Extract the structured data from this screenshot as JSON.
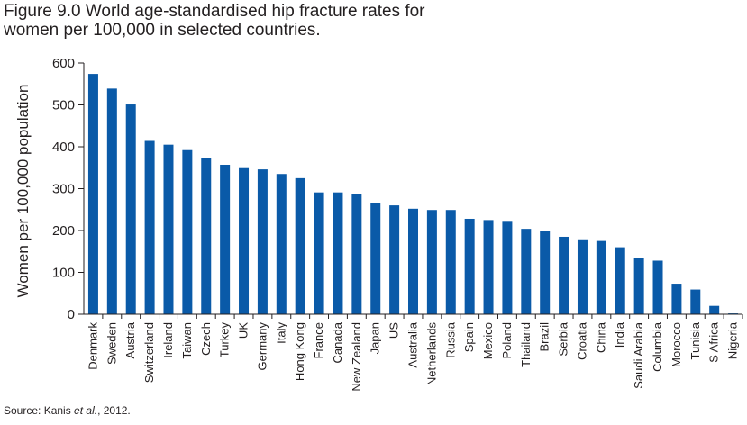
{
  "chart_data": {
    "type": "bar",
    "title_line1": "Figure 9.0 World age-standardised hip fracture rates for",
    "title_line2": "women per 100,000 in selected countries.",
    "xlabel": "",
    "ylabel": "Women per 100,000 population",
    "ylim": [
      0,
      600
    ],
    "yticks": [
      0,
      100,
      200,
      300,
      400,
      500,
      600
    ],
    "categories": [
      "Denmark",
      "Sweden",
      "Austria",
      "Switzerland",
      "Ireland",
      "Taiwan",
      "Czech",
      "Turkey",
      "UK",
      "Germany",
      "Italy",
      "Hong Kong",
      "France",
      "Canada",
      "New Zealand",
      "Japan",
      "US",
      "Australia",
      "Netherlands",
      "Russia",
      "Spain",
      "Mexico",
      "Poland",
      "Thailand",
      "Brazil",
      "Serbia",
      "Croatia",
      "China",
      "India",
      "Saudi Arabia",
      "Columbia",
      "Morocco",
      "Tunisia",
      "S Africa",
      "Nigeria"
    ],
    "values": [
      574,
      539,
      501,
      414,
      405,
      392,
      373,
      357,
      349,
      346,
      335,
      325,
      291,
      291,
      288,
      266,
      260,
      252,
      249,
      249,
      228,
      225,
      223,
      204,
      200,
      185,
      179,
      175,
      160,
      135,
      128,
      73,
      59,
      20,
      2
    ],
    "grid": false,
    "legend": "none"
  },
  "source": {
    "prefix": "Source: Kanis ",
    "etal": "et al.",
    "suffix": ", 2012."
  }
}
